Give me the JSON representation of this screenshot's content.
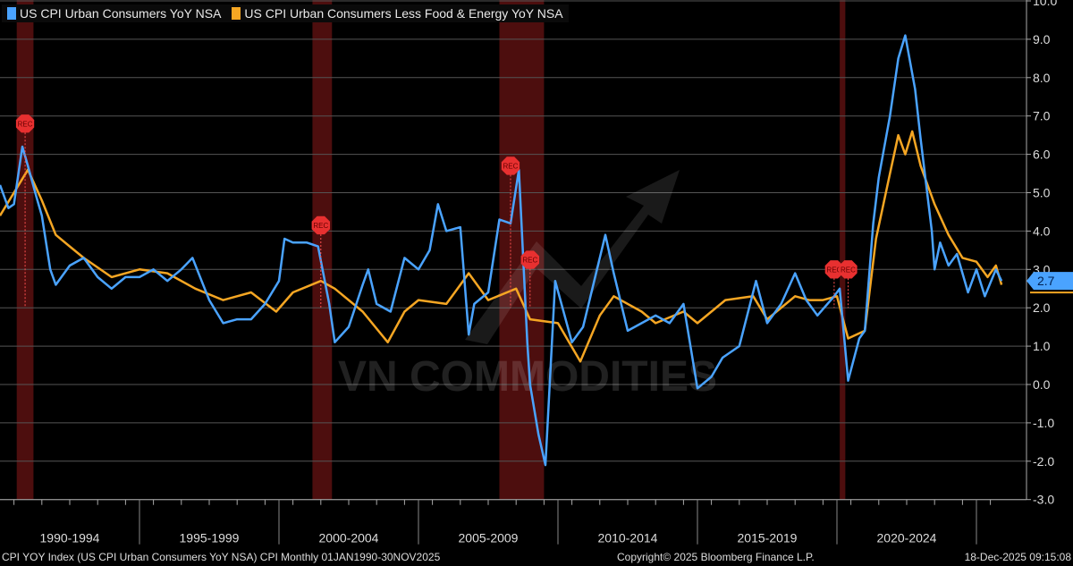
{
  "chart_data": {
    "type": "line",
    "title": "",
    "xlabel": "",
    "ylabel": "",
    "ylim": [
      -3.0,
      10.0
    ],
    "xlim": [
      "1990-01",
      "2025-11"
    ],
    "grid": true,
    "legend_placement": "top-left",
    "y_ticks": [
      "-3.0",
      "-2.0",
      "-1.0",
      "0.0",
      "1.0",
      "2.0",
      "3.0",
      "4.0",
      "5.0",
      "6.0",
      "7.0",
      "8.0",
      "9.0",
      "10.0"
    ],
    "x_tick_labels": [
      "1990-1994",
      "1995-1999",
      "2000-2004",
      "2005-2009",
      "2010-2014",
      "2015-2019",
      "2020-2024"
    ],
    "recessions": [
      [
        1990.6,
        1991.2
      ],
      [
        2001.2,
        2001.9
      ],
      [
        2007.9,
        2009.5
      ],
      [
        2020.1,
        2020.3
      ]
    ],
    "recession_marker_label": "REC",
    "recession_markers": [
      [
        1990.9,
        6.8
      ],
      [
        2001.5,
        4.15
      ],
      [
        2008.3,
        5.7
      ],
      [
        2009.0,
        3.25
      ],
      [
        2019.9,
        3.0
      ],
      [
        2020.4,
        3.0
      ]
    ],
    "last_value_label": "2.7",
    "series": [
      {
        "name": "US CPI Urban Consumers YoY NSA",
        "color": "#4aa3ff",
        "x": [
          1990.0,
          1990.3,
          1990.5,
          1990.8,
          1991.0,
          1991.3,
          1991.5,
          1991.8,
          1992.0,
          1992.5,
          1993.0,
          1993.5,
          1994.0,
          1994.5,
          1995.0,
          1995.5,
          1996.0,
          1996.5,
          1996.9,
          1997.5,
          1998.0,
          1998.5,
          1999.0,
          1999.5,
          2000.0,
          2000.2,
          2000.5,
          2001.0,
          2001.4,
          2001.8,
          2002.0,
          2002.5,
          2003.0,
          2003.2,
          2003.5,
          2004.0,
          2004.5,
          2005.0,
          2005.4,
          2005.7,
          2006.0,
          2006.5,
          2006.8,
          2007.0,
          2007.5,
          2007.9,
          2008.3,
          2008.6,
          2008.9,
          2009.0,
          2009.3,
          2009.55,
          2009.9,
          2010.5,
          2010.9,
          2011.7,
          2012.0,
          2012.5,
          2013.0,
          2013.5,
          2014.0,
          2014.5,
          2015.0,
          2015.5,
          2015.9,
          2016.5,
          2017.1,
          2017.5,
          2018.0,
          2018.5,
          2018.9,
          2019.3,
          2019.9,
          2020.1,
          2020.4,
          2020.8,
          2021.0,
          2021.3,
          2021.5,
          2021.9,
          2022.2,
          2022.45,
          2022.8,
          2023.0,
          2023.4,
          2023.5,
          2023.7,
          2024.0,
          2024.3,
          2024.7,
          2025.0,
          2025.3,
          2025.7,
          2025.9
        ],
        "values": [
          5.2,
          4.6,
          4.7,
          6.2,
          5.7,
          4.9,
          4.4,
          3.0,
          2.6,
          3.1,
          3.3,
          2.8,
          2.5,
          2.8,
          2.8,
          3.0,
          2.7,
          3.0,
          3.3,
          2.2,
          1.6,
          1.7,
          1.7,
          2.1,
          2.7,
          3.8,
          3.7,
          3.7,
          3.6,
          2.1,
          1.1,
          1.5,
          2.6,
          3.0,
          2.1,
          1.9,
          3.3,
          3.0,
          3.5,
          4.7,
          4.0,
          4.1,
          1.3,
          2.1,
          2.4,
          4.3,
          4.2,
          5.6,
          1.1,
          0.0,
          -1.3,
          -2.1,
          2.7,
          1.1,
          1.5,
          3.9,
          2.9,
          1.4,
          1.6,
          1.8,
          1.6,
          2.1,
          -0.1,
          0.2,
          0.7,
          1.0,
          2.7,
          1.6,
          2.1,
          2.9,
          2.2,
          1.8,
          2.3,
          2.5,
          0.1,
          1.2,
          1.4,
          4.2,
          5.4,
          7.0,
          8.5,
          9.1,
          7.7,
          6.4,
          4.0,
          3.0,
          3.7,
          3.1,
          3.4,
          2.4,
          3.0,
          2.3,
          3.0,
          2.7
        ]
      },
      {
        "name": "US CPI Urban Consumers Less Food & Energy YoY NSA",
        "color": "#f5a623",
        "x": [
          1990.0,
          1990.5,
          1991.0,
          1991.5,
          1992.0,
          1992.5,
          1993.0,
          1994.0,
          1995.0,
          1996.0,
          1997.0,
          1998.0,
          1999.0,
          1999.9,
          2000.5,
          2001.5,
          2002.0,
          2003.0,
          2003.9,
          2004.5,
          2005.0,
          2006.0,
          2006.8,
          2007.5,
          2008.5,
          2009.0,
          2010.0,
          2010.8,
          2011.5,
          2012.0,
          2013.0,
          2013.5,
          2014.5,
          2015.0,
          2016.0,
          2017.0,
          2017.5,
          2018.5,
          2019.0,
          2019.5,
          2020.0,
          2020.4,
          2021.0,
          2021.4,
          2021.9,
          2022.2,
          2022.45,
          2022.7,
          2023.0,
          2023.5,
          2024.0,
          2024.5,
          2025.0,
          2025.4,
          2025.7,
          2025.9
        ],
        "values": [
          4.4,
          5.0,
          5.6,
          4.8,
          3.9,
          3.6,
          3.3,
          2.8,
          3.0,
          2.9,
          2.5,
          2.2,
          2.4,
          1.9,
          2.4,
          2.7,
          2.5,
          1.9,
          1.1,
          1.9,
          2.2,
          2.1,
          2.9,
          2.2,
          2.5,
          1.7,
          1.6,
          0.6,
          1.8,
          2.3,
          1.9,
          1.6,
          1.9,
          1.6,
          2.2,
          2.3,
          1.7,
          2.3,
          2.2,
          2.2,
          2.3,
          1.2,
          1.4,
          3.8,
          5.5,
          6.5,
          6.0,
          6.6,
          5.7,
          4.7,
          3.9,
          3.3,
          3.2,
          2.8,
          3.1,
          2.6
        ]
      }
    ]
  },
  "watermark": "VN COMMODITIES",
  "footer": {
    "left": "CPI YOY Index (US CPI Urban Consumers YoY NSA) CPI Monthly 01JAN1990-30NOV2025",
    "center": "Copyright© 2025 Bloomberg Finance L.P.",
    "right": "18-Dec-2025 09:15:08"
  }
}
